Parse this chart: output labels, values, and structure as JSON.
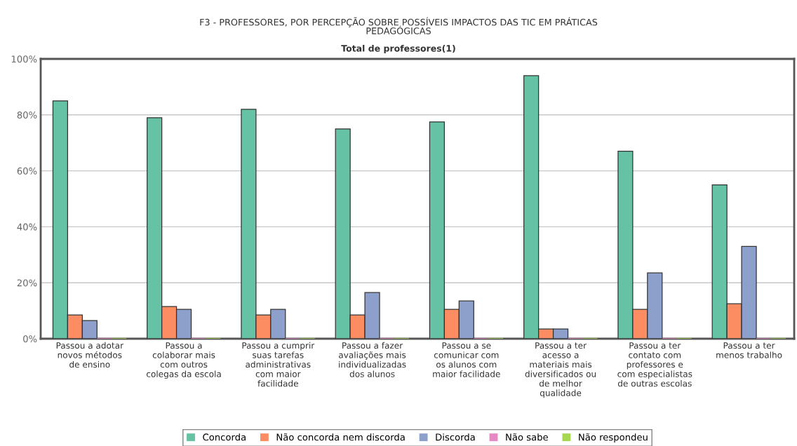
{
  "chart_data": {
    "type": "bar",
    "title": "F3 - PROFESSORES, POR PERCEPÇÃO SOBRE POSSÍVEIS IMPACTOS DAS TIC EM PRÁTICAS\nPEDAGÓGICAS",
    "subtitle": "Total de professores(1)",
    "categories": [
      "Passou a adotar\nnovos métodos\nde ensino",
      "Passou a\ncolaborar mais\ncom outros\ncolegas da escola",
      "Passou a cumprir\nsuas tarefas\nadministrativas\ncom maior\nfacilidade",
      "Passou a fazer\navaliações mais\nindividualizadas\ndos alunos",
      "Passou a se\ncomunicar com\nos alunos com\nmaior facilidade",
      "Passou a ter\nacesso a\nmateriais mais\ndiversificados ou\nde melhor\nqualidade",
      "Passou a ter\ncontato com\nprofessores e\ncom especialistas\nde outras escolas",
      "Passou a ter\nmenos trabalho"
    ],
    "series": [
      {
        "name": "Concorda",
        "color": "#66c2a5",
        "values": [
          85,
          79,
          82,
          75,
          77.5,
          94,
          67,
          55
        ]
      },
      {
        "name": "Não concorda nem discorda",
        "color": "#fc8d62",
        "values": [
          8.5,
          11.5,
          8.5,
          8.5,
          10.5,
          3.5,
          10.5,
          12.5
        ]
      },
      {
        "name": "Discorda",
        "color": "#8da0cb",
        "values": [
          6.5,
          10.5,
          10.5,
          16.5,
          13.5,
          3.5,
          23.5,
          33
        ]
      },
      {
        "name": "Não sabe",
        "color": "#e78ac3",
        "values": [
          0,
          0,
          0,
          0,
          0,
          0,
          0,
          0
        ]
      },
      {
        "name": "Não respondeu",
        "color": "#a6d854",
        "values": [
          0,
          0,
          0,
          0,
          0,
          0,
          0,
          0
        ]
      }
    ],
    "ylim": [
      0,
      100
    ],
    "yticks": [
      {
        "value": 0,
        "label": "0%"
      },
      {
        "value": 20,
        "label": "20%"
      },
      {
        "value": 40,
        "label": "40%"
      },
      {
        "value": 60,
        "label": "60%"
      },
      {
        "value": 80,
        "label": "80%"
      },
      {
        "value": 100,
        "label": "100%"
      }
    ],
    "grid": "y",
    "legend": "bottom"
  }
}
